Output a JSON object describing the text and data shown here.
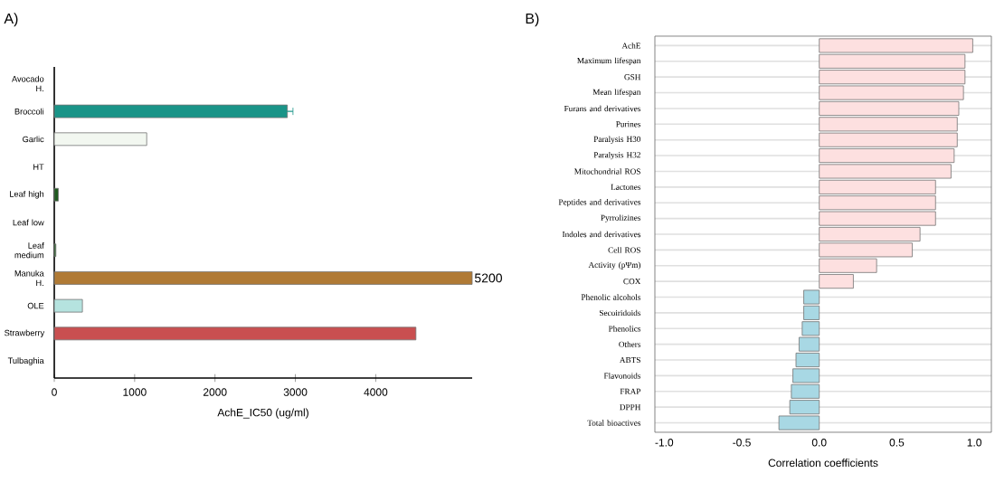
{
  "chart_data": [
    {
      "type": "bar",
      "orientation": "horizontal",
      "title": "A)",
      "xlabel": "AchE_IC50 (ug/ml)",
      "categories": [
        "Avocado H.",
        "Broccoli",
        "Garlic",
        "HT",
        "Leaf high",
        "Leaf low",
        "Leaf medium",
        "Manuka H.",
        "OLE",
        "Strawberry",
        "Tulbaghia"
      ],
      "values": [
        null,
        2900,
        1150,
        null,
        50,
        null,
        20,
        5200,
        350,
        4500,
        null
      ],
      "colors": [
        "#888888",
        "#1a9488",
        "#f2f7f0",
        "#888888",
        "#1e5a1e",
        "#888888",
        "#2e6a2e",
        "#b07a35",
        "#b5e3df",
        "#c94f50",
        "#888888"
      ],
      "errors": [
        null,
        70,
        null,
        null,
        null,
        null,
        null,
        null,
        null,
        null,
        null
      ],
      "value_labels": [
        null,
        null,
        null,
        null,
        null,
        null,
        null,
        "5200",
        null,
        null,
        null
      ],
      "xlim": [
        0,
        5200
      ],
      "xticks": [
        0,
        1000,
        2000,
        3000,
        4000
      ],
      "grid": false
    },
    {
      "type": "bar",
      "orientation": "horizontal",
      "title": "B)",
      "xlabel": "Correlation coefficients",
      "categories": [
        "AchE",
        "Maximum lifespan",
        "GSH",
        "Mean lifespan",
        "Furans and derivatives",
        "Purines",
        "Paralysis H30",
        "Paralysis H32",
        "Mitochondrial ROS",
        "Lactones",
        "Peptides and derivatives",
        "Pyrrolizines",
        "Indoles and derivatives",
        "Cell ROS",
        "Activity (pΨm)",
        "COX",
        "Phenolic alcohols",
        "Secoiridoids",
        "Phenolics",
        "Others",
        "ABTS",
        "Flavonoids",
        "FRAP",
        "DPPH",
        "Total bioactives"
      ],
      "values": [
        0.99,
        0.94,
        0.94,
        0.93,
        0.9,
        0.89,
        0.89,
        0.87,
        0.85,
        0.75,
        0.75,
        0.75,
        0.65,
        0.6,
        0.37,
        0.22,
        -0.1,
        -0.1,
        -0.11,
        -0.13,
        -0.15,
        -0.17,
        -0.18,
        -0.19,
        -0.26
      ],
      "colors": [
        "#fde0e0",
        "#fde0e0",
        "#fde0e0",
        "#fde0e0",
        "#fde0e0",
        "#fde0e0",
        "#fde0e0",
        "#fde0e0",
        "#fde0e0",
        "#fde0e0",
        "#fde0e0",
        "#fde0e0",
        "#fde0e0",
        "#fde0e0",
        "#fde0e0",
        "#fde0e0",
        "#a8d8e4",
        "#a8d8e4",
        "#a8d8e4",
        "#a8d8e4",
        "#a8d8e4",
        "#a8d8e4",
        "#a8d8e4",
        "#a8d8e4",
        "#a8d8e4"
      ],
      "xlim": [
        -1.06,
        1.11
      ],
      "xticks": [
        {
          "value": -1,
          "label": "-1.0"
        },
        {
          "value": -0.5,
          "label": "-0.5"
        },
        {
          "value": 0,
          "label": "0.0"
        },
        {
          "value": 0.5,
          "label": "0.5"
        },
        {
          "value": 1,
          "label": "1.0"
        }
      ],
      "grid": "y"
    }
  ]
}
